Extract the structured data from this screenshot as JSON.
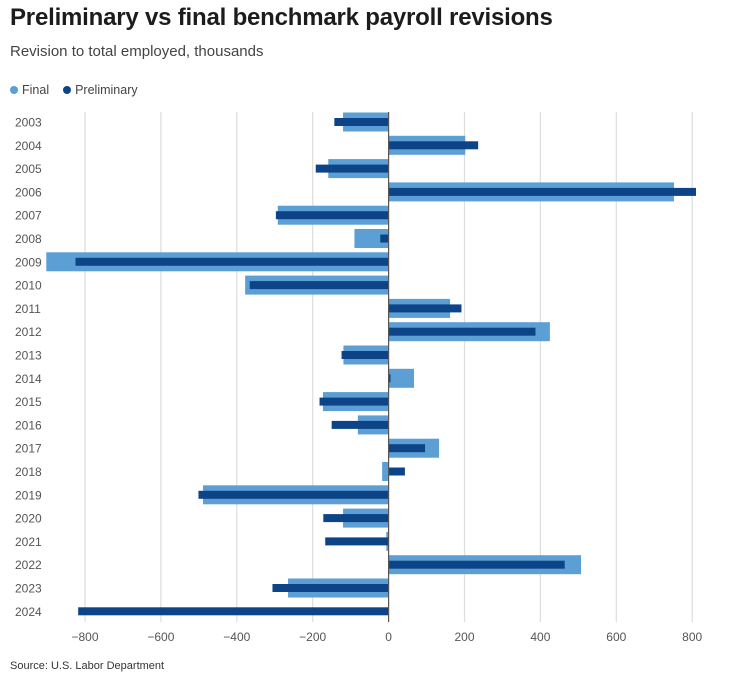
{
  "title": "Preliminary vs final benchmark payroll revisions",
  "subtitle": "Revision to total employed, thousands",
  "source": "Source: U.S. Labor Department",
  "colors": {
    "final": "#5b9fd5",
    "preliminary": "#0d4487",
    "grid": "#dddddd",
    "axis": "#555555"
  },
  "chart_data": {
    "type": "bar",
    "orientation": "horizontal",
    "title": "Preliminary vs final benchmark payroll revisions",
    "subtitle": "Revision to total employed, thousands",
    "xlabel": "",
    "ylabel": "",
    "xlim": [
      -900,
      850
    ],
    "xticks": [
      -800,
      -600,
      -400,
      -200,
      0,
      200,
      400,
      600,
      800
    ],
    "xtick_labels": [
      "−800",
      "−600",
      "−400",
      "−200",
      "0",
      "200",
      "400",
      "600",
      "800"
    ],
    "grid": true,
    "legend": {
      "position": "top-left",
      "entries": [
        "Final",
        "Preliminary"
      ]
    },
    "categories": [
      "2003",
      "2004",
      "2005",
      "2006",
      "2007",
      "2008",
      "2009",
      "2010",
      "2011",
      "2012",
      "2013",
      "2014",
      "2015",
      "2016",
      "2017",
      "2018",
      "2019",
      "2020",
      "2021",
      "2022",
      "2023",
      "2024"
    ],
    "series": [
      {
        "name": "Final",
        "values": [
          -120,
          202,
          -159,
          752,
          -292,
          -90,
          -902,
          -378,
          162,
          425,
          -119,
          67,
          -173,
          -81,
          133,
          -17,
          -489,
          -120,
          -6,
          507,
          -265,
          null
        ]
      },
      {
        "name": "Preliminary",
        "values": [
          -143,
          236,
          -192,
          810,
          -297,
          -22,
          -825,
          -366,
          192,
          387,
          -124,
          5,
          -182,
          -150,
          96,
          43,
          -501,
          -172,
          -167,
          464,
          -306,
          -818
        ]
      }
    ]
  }
}
